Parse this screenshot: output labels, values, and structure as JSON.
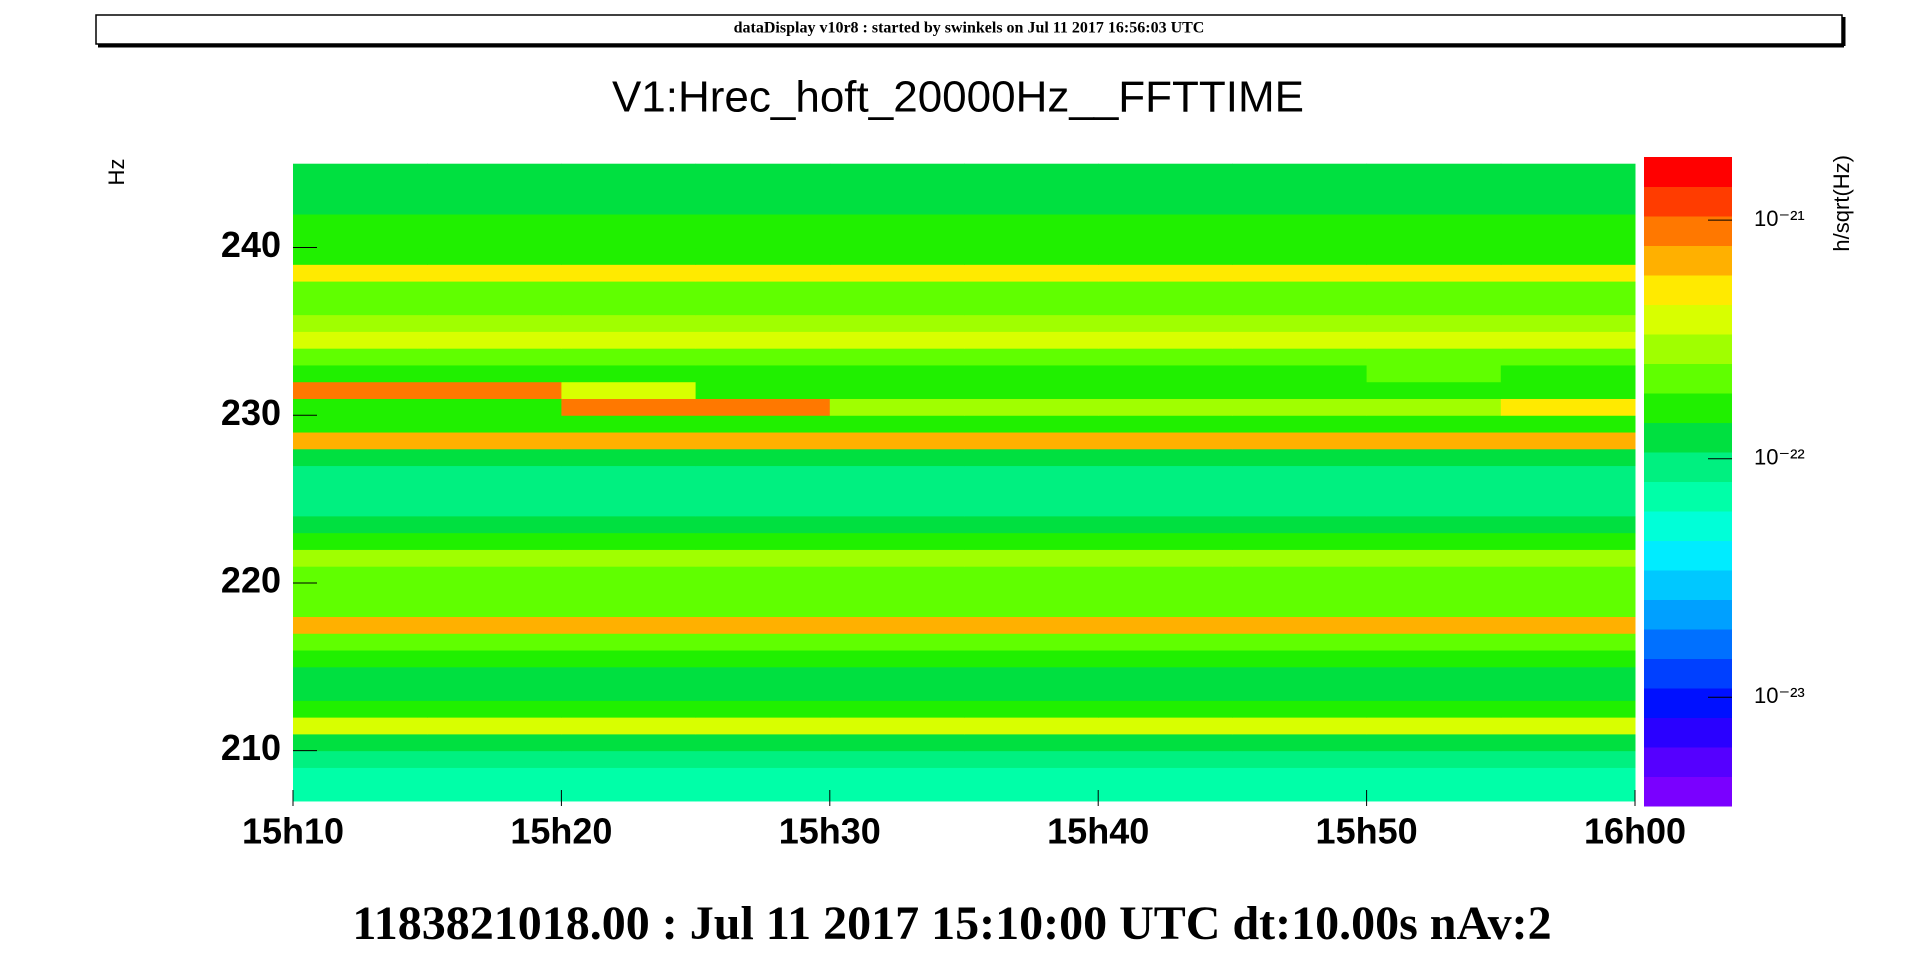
{
  "chart_data": {
    "type": "heatmap",
    "header": "dataDisplay v10r8 : started by swinkels on Jul 11 2017 16:56:03 UTC",
    "title": "V1:Hrec_hoft_20000Hz__FFTTIME",
    "footer": "1183821018.00 : Jul 11 2017 15:10:00 UTC dt:10.00s nAv:2",
    "y_label": "Hz",
    "z_label": "h/sqrt(Hz)",
    "xbins": [
      10,
      15,
      20,
      25,
      30,
      35,
      40,
      45,
      50,
      55,
      60
    ],
    "ybins": [
      207,
      208,
      209,
      210,
      211,
      212,
      213,
      214,
      215,
      216,
      217,
      218,
      219,
      220,
      221,
      222,
      223,
      224,
      225,
      226,
      227,
      228,
      229,
      230,
      231,
      232,
      233,
      234,
      235,
      236,
      237,
      238,
      239,
      240,
      241,
      242,
      243,
      244,
      245
    ],
    "xlim": [
      10,
      60
    ],
    "ylim": [
      206.7,
      245.4
    ],
    "zlim": [
      3.5e-24,
      1.84e-21
    ],
    "zlog": true,
    "xticks": [
      {
        "value": 10,
        "label": "15h10"
      },
      {
        "value": 20,
        "label": "15h20"
      },
      {
        "value": 30,
        "label": "15h30"
      },
      {
        "value": 40,
        "label": "15h40"
      },
      {
        "value": 50,
        "label": "15h50"
      },
      {
        "value": 60,
        "label": "16h00"
      }
    ],
    "yticks": [
      210,
      220,
      230,
      240
    ],
    "zticks": [
      {
        "value": 1e-21,
        "label": "10⁻²¹"
      },
      {
        "value": 1e-22,
        "label": "10⁻²²"
      },
      {
        "value": 1e-23,
        "label": "10⁻²³"
      }
    ],
    "palette": [
      "#7a00ff",
      "#5500ff",
      "#2a00ff",
      "#0010ff",
      "#0040ff",
      "#0070ff",
      "#00a0ff",
      "#00c8ff",
      "#00ecff",
      "#00ffd8",
      "#00ffa8",
      "#00f080",
      "#00e040",
      "#20f000",
      "#60ff00",
      "#a0ff00",
      "#d8ff00",
      "#ffea00",
      "#ffb000",
      "#ff7800",
      "#ff3c00",
      "#ff0000"
    ],
    "z": [
      [
        8e-23,
        8e-23,
        8e-23,
        8e-23,
        8e-23,
        8e-23,
        8e-23,
        8e-23,
        8e-23,
        8e-23
      ],
      [
        8e-23,
        8e-23,
        8e-23,
        8e-23,
        8e-23,
        8e-23,
        8e-23,
        8e-23,
        8e-23,
        8e-23
      ],
      [
        9e-23,
        9e-23,
        9e-23,
        9e-23,
        9e-23,
        9e-23,
        9e-23,
        9e-23,
        9e-23,
        9e-23
      ],
      [
        1.1e-22,
        1.1e-22,
        1.1e-22,
        1.1e-22,
        1.1e-22,
        1.1e-22,
        1.1e-22,
        1.1e-22,
        1.1e-22,
        1.1e-22
      ],
      [
        4e-22,
        4e-22,
        4e-22,
        4e-22,
        4e-22,
        4e-22,
        4e-22,
        4e-22,
        4e-22,
        4e-22
      ],
      [
        1.5e-22,
        1.5e-22,
        1.5e-22,
        1.5e-22,
        1.5e-22,
        1.5e-22,
        1.5e-22,
        1.5e-22,
        1.5e-22,
        1.5e-22
      ],
      [
        1.2e-22,
        1.2e-22,
        1.2e-22,
        1.2e-22,
        1.2e-22,
        1.2e-22,
        1.2e-22,
        1.2e-22,
        1.2e-22,
        1.2e-22
      ],
      [
        1.2e-22,
        1.2e-22,
        1.2e-22,
        1.2e-22,
        1.2e-22,
        1.2e-22,
        1.2e-22,
        1.2e-22,
        1.2e-22,
        1.2e-22
      ],
      [
        1.5e-22,
        1.5e-22,
        1.5e-22,
        1.5e-22,
        1.5e-22,
        1.5e-22,
        1.5e-22,
        1.5e-22,
        1.5e-22,
        1.5e-22
      ],
      [
        2.5e-22,
        2.5e-22,
        2.5e-22,
        2.5e-22,
        2.5e-22,
        2.5e-22,
        2.5e-22,
        2.5e-22,
        2.5e-22,
        2.5e-22
      ],
      [
        7e-22,
        7e-22,
        7e-22,
        7e-22,
        7e-22,
        7e-22,
        7e-22,
        7e-22,
        7e-22,
        7e-22
      ],
      [
        2.5e-22,
        2.5e-22,
        2.5e-22,
        2.5e-22,
        2.5e-22,
        2.5e-22,
        2.5e-22,
        2.5e-22,
        2.5e-22,
        2.5e-22
      ],
      [
        2e-22,
        2e-22,
        2e-22,
        2e-22,
        2e-22,
        2e-22,
        2e-22,
        2e-22,
        2e-22,
        2e-22
      ],
      [
        2.5e-22,
        2.5e-22,
        2.5e-22,
        2.5e-22,
        2.5e-22,
        2.5e-22,
        2.5e-22,
        2.5e-22,
        2.5e-22,
        2.5e-22
      ],
      [
        3e-22,
        3e-22,
        3e-22,
        3e-22,
        3e-22,
        3e-22,
        3e-22,
        3e-22,
        3e-22,
        3e-22
      ],
      [
        1.8e-22,
        1.8e-22,
        1.8e-22,
        1.8e-22,
        1.8e-22,
        1.8e-22,
        1.8e-22,
        1.8e-22,
        1.8e-22,
        1.8e-22
      ],
      [
        1.3e-22,
        1.3e-22,
        1.3e-22,
        1.3e-22,
        1.3e-22,
        1.3e-22,
        1.3e-22,
        1.3e-22,
        1.3e-22,
        1.3e-22
      ],
      [
        1e-22,
        1e-22,
        1e-22,
        1e-22,
        1e-22,
        1e-22,
        1e-22,
        1e-22,
        1e-22,
        1e-22
      ],
      [
        9e-23,
        9e-23,
        9e-23,
        9e-23,
        9e-23,
        9e-23,
        9e-23,
        9e-23,
        9e-23,
        9e-23
      ],
      [
        1e-22,
        1e-22,
        1e-22,
        1e-22,
        1e-22,
        1e-22,
        1e-22,
        1e-22,
        1e-22,
        1e-22
      ],
      [
        1.2e-22,
        1.2e-22,
        1.2e-22,
        1.2e-22,
        1.2e-22,
        1.2e-22,
        1.2e-22,
        1.2e-22,
        1.2e-22,
        1.2e-22
      ],
      [
        6e-22,
        6e-22,
        6e-22,
        6e-22,
        6e-22,
        6e-22,
        6e-22,
        6e-22,
        6e-22,
        6e-22
      ],
      [
        1.5e-22,
        1.5e-22,
        1.5e-22,
        1.5e-22,
        1.5e-22,
        1.5e-22,
        1.5e-22,
        1.5e-22,
        1.5e-22,
        1.5e-22
      ],
      [
        1.8e-22,
        1.8e-22,
        8e-22,
        8e-22,
        3e-22,
        3e-22,
        3e-22,
        3e-22,
        3e-22,
        5e-22
      ],
      [
        8e-22,
        8e-22,
        4e-22,
        1.6e-22,
        1.6e-22,
        1.6e-22,
        1.6e-22,
        1.6e-22,
        1.6e-22,
        1.6e-22
      ],
      [
        1.5e-22,
        1.5e-22,
        1.5e-22,
        1.5e-22,
        1.5e-22,
        1.5e-22,
        1.5e-22,
        1.5e-22,
        2.5e-22,
        1.5e-22
      ],
      [
        2e-22,
        2e-22,
        2e-22,
        2e-22,
        2e-22,
        2e-22,
        2e-22,
        2e-22,
        2e-22,
        2e-22
      ],
      [
        3.5e-22,
        3.5e-22,
        3.5e-22,
        3.5e-22,
        3.5e-22,
        3.5e-22,
        3.5e-22,
        3.5e-22,
        3.5e-22,
        3.5e-22
      ],
      [
        3e-22,
        3e-22,
        3e-22,
        3e-22,
        3e-22,
        3e-22,
        3e-22,
        3e-22,
        3e-22,
        3e-22
      ],
      [
        2.5e-22,
        2.5e-22,
        2.5e-22,
        2.5e-22,
        2.5e-22,
        2.5e-22,
        2.5e-22,
        2.5e-22,
        2.5e-22,
        2.5e-22
      ],
      [
        2e-22,
        2e-22,
        2e-22,
        2e-22,
        2e-22,
        2e-22,
        2e-22,
        2e-22,
        2e-22,
        2e-22
      ],
      [
        5e-22,
        5e-22,
        5e-22,
        5e-22,
        5e-22,
        5e-22,
        5e-22,
        5e-22,
        5e-22,
        5e-22
      ],
      [
        1.8e-22,
        1.8e-22,
        1.8e-22,
        1.8e-22,
        1.8e-22,
        1.8e-22,
        1.8e-22,
        1.8e-22,
        1.8e-22,
        1.8e-22
      ],
      [
        1.5e-22,
        1.5e-22,
        1.5e-22,
        1.5e-22,
        1.5e-22,
        1.5e-22,
        1.5e-22,
        1.5e-22,
        1.5e-22,
        1.5e-22
      ],
      [
        1.5e-22,
        1.5e-22,
        1.5e-22,
        1.5e-22,
        1.5e-22,
        1.5e-22,
        1.5e-22,
        1.5e-22,
        1.5e-22,
        1.5e-22
      ],
      [
        1.3e-22,
        1.3e-22,
        1.3e-22,
        1.3e-22,
        1.3e-22,
        1.3e-22,
        1.3e-22,
        1.3e-22,
        1.3e-22,
        1.3e-22
      ],
      [
        1.3e-22,
        1.3e-22,
        1.3e-22,
        1.3e-22,
        1.3e-22,
        1.3e-22,
        1.3e-22,
        1.3e-22,
        1.3e-22,
        1.3e-22
      ],
      [
        1.2e-22,
        1.2e-22,
        1.2e-22,
        1.2e-22,
        1.2e-22,
        1.2e-22,
        1.2e-22,
        1.2e-22,
        1.2e-22,
        1.2e-22
      ]
    ]
  }
}
